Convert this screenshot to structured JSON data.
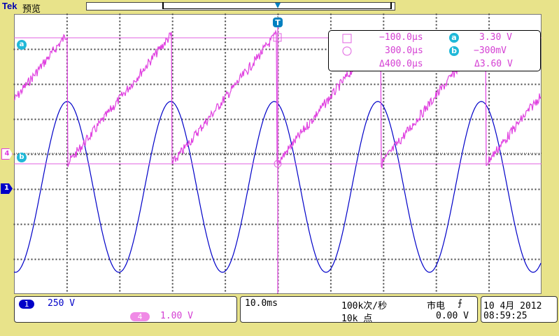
{
  "header": {
    "brand": "Tek",
    "mode": "预览"
  },
  "trigger_marker": "T",
  "channel_markers": {
    "ch1": "1",
    "ch4": "4",
    "cursor_a": "a",
    "cursor_b": "b"
  },
  "cursor_readout": {
    "time_1": "−100.0µs",
    "time_2": "300.0µs",
    "time_delta": "Δ400.0µs",
    "cursor_a_label": "a",
    "cursor_b_label": "b",
    "volt_a": "3.30 V",
    "volt_b": "−300mV",
    "volt_delta": "Δ3.60 V"
  },
  "status_bar": {
    "ch1_label": "1",
    "ch1_scale": "250 V",
    "ch4_label": "4",
    "ch4_scale": "1.00 V",
    "timebase": "10.0ms",
    "sample_rate": "100k次/秒",
    "record_length": "10k 点",
    "trigger_source": "市电",
    "trigger_slope": "⨍",
    "trigger_level": "0.00 V",
    "date": "10 4月  2012",
    "time": "08:59:25"
  },
  "colors": {
    "ch1": "#0000c8",
    "ch4": "#e040e0",
    "cursor": "#e060e0",
    "background": "#e8e38a"
  }
}
